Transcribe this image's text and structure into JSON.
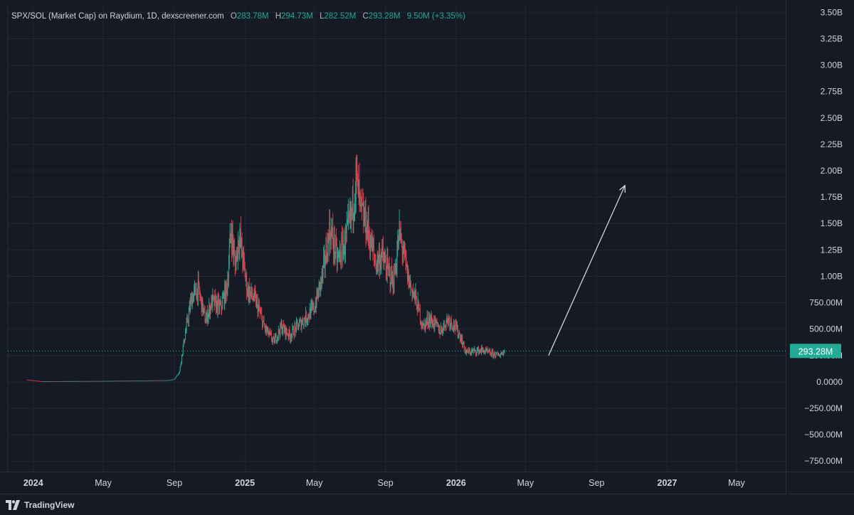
{
  "legend": {
    "symbol": "SPX/SOL (Market Cap) on Raydium, 1D, dexscreener.com",
    "open_label": "O",
    "open": "283.78M",
    "high_label": "H",
    "high": "294.73M",
    "low_label": "L",
    "low": "282.52M",
    "close_label": "C",
    "close": "293.28M",
    "change": "9.50M (+3.35%)"
  },
  "price_tag": "293.28M",
  "footer": {
    "brand": "TradingView",
    "logo_icon": "tradingview-logo-icon"
  },
  "colors": {
    "background": "#161a25",
    "grid": "#232733",
    "up": "#22ab94",
    "down": "#f23645",
    "text": "#d1d4dc",
    "arrow": "#e0e3eb"
  },
  "chart_data": {
    "type": "candlestick",
    "ylim": [
      -850000000,
      3550000000
    ],
    "y_ticks": [
      {
        "value": 3500000000,
        "label": "3.50B"
      },
      {
        "value": 3250000000,
        "label": "3.25B"
      },
      {
        "value": 3000000000,
        "label": "3.00B"
      },
      {
        "value": 2750000000,
        "label": "2.75B"
      },
      {
        "value": 2500000000,
        "label": "2.50B"
      },
      {
        "value": 2250000000,
        "label": "2.25B"
      },
      {
        "value": 2000000000,
        "label": "2.00B"
      },
      {
        "value": 1750000000,
        "label": "1.75B"
      },
      {
        "value": 1500000000,
        "label": "1.50B"
      },
      {
        "value": 1250000000,
        "label": "1.25B"
      },
      {
        "value": 1000000000,
        "label": "1.00B"
      },
      {
        "value": 750000000,
        "label": "750.00M"
      },
      {
        "value": 500000000,
        "label": "500.00M"
      },
      {
        "value": 250000000,
        "label": "250.00M"
      },
      {
        "value": 0,
        "label": "0.0000"
      },
      {
        "value": -250000000,
        "label": "−250.00M"
      },
      {
        "value": -500000000,
        "label": "−500.00M"
      },
      {
        "value": -750000000,
        "label": "−750.00M"
      }
    ],
    "x_ticks": [
      {
        "date": "2024-01-01",
        "label": "2024",
        "bold": true
      },
      {
        "date": "2024-05-01",
        "label": "May",
        "bold": false
      },
      {
        "date": "2024-09-01",
        "label": "Sep",
        "bold": false
      },
      {
        "date": "2025-01-01",
        "label": "2025",
        "bold": true
      },
      {
        "date": "2025-05-01",
        "label": "May",
        "bold": false
      },
      {
        "date": "2025-09-01",
        "label": "Sep",
        "bold": false
      },
      {
        "date": "2026-01-01",
        "label": "2026",
        "bold": true
      },
      {
        "date": "2026-05-01",
        "label": "May",
        "bold": false
      },
      {
        "date": "2026-09-01",
        "label": "Sep",
        "bold": false
      },
      {
        "date": "2027-01-01",
        "label": "2027",
        "bold": true
      },
      {
        "date": "2027-05-01",
        "label": "May",
        "bold": false
      }
    ],
    "xlim": [
      "2023-11-18",
      "2027-07-25"
    ],
    "last_close": 293280000,
    "series_close_path": [
      [
        "2023-12-22",
        20000000
      ],
      [
        "2024-01-15",
        5000000
      ],
      [
        "2024-05-01",
        8000000
      ],
      [
        "2024-08-20",
        15000000
      ],
      [
        "2024-09-01",
        25000000
      ],
      [
        "2024-09-10",
        100000000
      ],
      [
        "2024-09-18",
        400000000
      ],
      [
        "2024-10-01",
        800000000
      ],
      [
        "2024-10-12",
        880000000
      ],
      [
        "2024-10-25",
        580000000
      ],
      [
        "2024-11-05",
        760000000
      ],
      [
        "2024-11-20",
        700000000
      ],
      [
        "2024-12-01",
        900000000
      ],
      [
        "2024-12-08",
        1450000000
      ],
      [
        "2024-12-15",
        1100000000
      ],
      [
        "2024-12-22",
        1400000000
      ],
      [
        "2025-01-05",
        880000000
      ],
      [
        "2025-01-20",
        760000000
      ],
      [
        "2025-02-05",
        500000000
      ],
      [
        "2025-02-20",
        380000000
      ],
      [
        "2025-03-05",
        520000000
      ],
      [
        "2025-03-20",
        440000000
      ],
      [
        "2025-04-01",
        520000000
      ],
      [
        "2025-04-15",
        600000000
      ],
      [
        "2025-05-01",
        700000000
      ],
      [
        "2025-05-15",
        1000000000
      ],
      [
        "2025-05-28",
        1450000000
      ],
      [
        "2025-06-10",
        1150000000
      ],
      [
        "2025-06-25",
        1350000000
      ],
      [
        "2025-07-05",
        1600000000
      ],
      [
        "2025-07-12",
        1950000000
      ],
      [
        "2025-07-20",
        1620000000
      ],
      [
        "2025-08-01",
        1450000000
      ],
      [
        "2025-08-15",
        1120000000
      ],
      [
        "2025-08-25",
        1200000000
      ],
      [
        "2025-09-05",
        1050000000
      ],
      [
        "2025-09-15",
        950000000
      ],
      [
        "2025-09-25",
        1400000000
      ],
      [
        "2025-10-01",
        1250000000
      ],
      [
        "2025-10-10",
        980000000
      ],
      [
        "2025-10-25",
        750000000
      ],
      [
        "2025-11-05",
        520000000
      ],
      [
        "2025-11-15",
        600000000
      ],
      [
        "2025-11-25",
        550000000
      ],
      [
        "2025-12-05",
        480000000
      ],
      [
        "2025-12-18",
        600000000
      ],
      [
        "2025-12-28",
        540000000
      ],
      [
        "2026-01-08",
        440000000
      ],
      [
        "2026-01-18",
        280000000
      ],
      [
        "2026-02-01",
        290000000
      ],
      [
        "2026-02-15",
        300000000
      ],
      [
        "2026-03-01",
        270000000
      ],
      [
        "2026-03-15",
        250000000
      ],
      [
        "2026-03-26",
        293280000
      ]
    ],
    "annotations": [
      {
        "type": "arrow",
        "from": {
          "date": "2026-06-10",
          "value": 250000000
        },
        "to": {
          "date": "2026-10-20",
          "value": 1860000000
        }
      }
    ]
  }
}
